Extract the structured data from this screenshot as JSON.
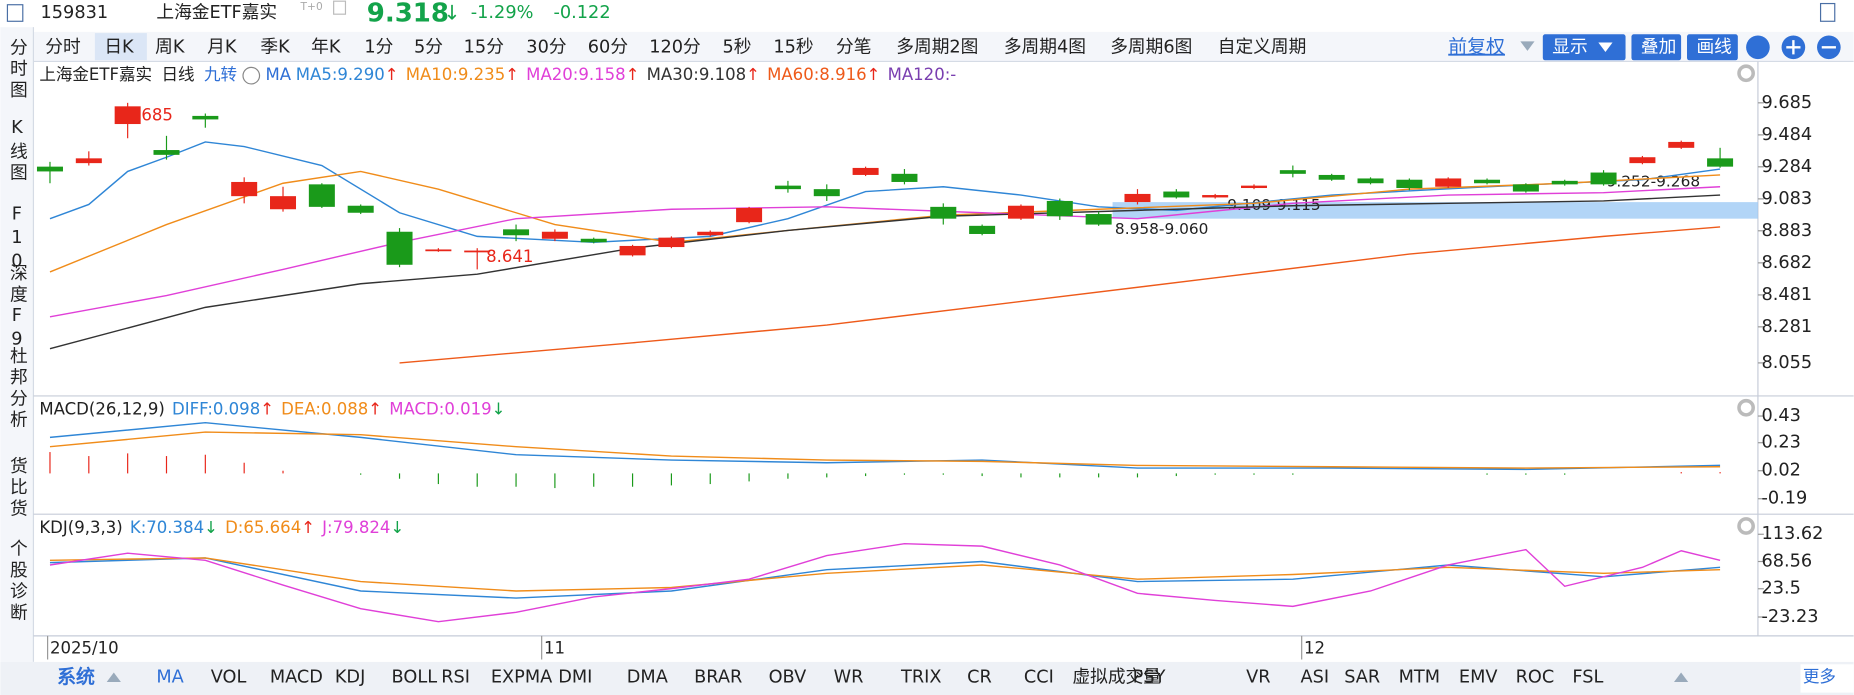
{
  "header": {
    "code": "159831",
    "name": "上海金ETF嘉实",
    "badge": "T+0",
    "price": "9.318",
    "direction": "↓",
    "change_pct": "-1.29%",
    "change": "-0.122"
  },
  "tabs": [
    "分时",
    "日K",
    "周K",
    "月K",
    "季K",
    "年K",
    "1分",
    "5分",
    "15分",
    "30分",
    "60分",
    "120分",
    "5秒",
    "15秒",
    "分笔",
    "多周期2图",
    "多周期4图",
    "多周期6图",
    "自定义周期"
  ],
  "selected_tab": "日K",
  "toolbar": {
    "adjust": "前复权",
    "buttons": [
      "显示",
      "叠加",
      "画线"
    ]
  },
  "sidebar": [
    "分时图",
    "K线图",
    "F10",
    "深度F9",
    "杜邦分析",
    "货比货",
    "个股诊断"
  ],
  "legend": {
    "name": "上海金ETF嘉实",
    "period": "日线",
    "jiuzhuan": "九转",
    "ma": "MA",
    "items": [
      {
        "label": "MA5:9.290",
        "trend": "↑",
        "color": "#2f86d6"
      },
      {
        "label": "MA10:9.235",
        "trend": "↑",
        "color": "#f08c1a"
      },
      {
        "label": "MA20:9.158",
        "trend": "↑",
        "color": "#e040d8"
      },
      {
        "label": "MA30:9.108",
        "trend": "↑",
        "color": "#333333"
      },
      {
        "label": "MA60:8.916",
        "trend": "↑",
        "color": "#ee5a1a"
      },
      {
        "label": "MA120:-",
        "trend": "",
        "color": "#7a3fb0"
      }
    ]
  },
  "dates": [
    "2025/10",
    "11",
    "12"
  ],
  "chart_data": [
    {
      "type": "candlestick",
      "up_color": "#e8261a",
      "down_color": "#1a9a1a",
      "ylim": [
        7.87,
        9.922
      ],
      "yticks": [
        9.685,
        9.484,
        9.284,
        9.083,
        8.883,
        8.682,
        8.481,
        8.281,
        8.055
      ],
      "ohlc": [
        [
          9.285,
          9.255,
          9.315,
          9.181
        ],
        [
          9.307,
          9.337,
          9.381,
          9.292
        ],
        [
          9.552,
          9.663,
          9.685,
          9.463
        ],
        [
          9.389,
          9.359,
          9.478,
          9.329
        ],
        [
          9.603,
          9.581,
          9.618,
          9.529
        ],
        [
          9.1,
          9.189,
          9.218,
          9.055
        ],
        [
          9.018,
          9.1,
          9.159,
          9.003
        ],
        [
          9.174,
          9.033,
          9.181,
          9.026
        ],
        [
          9.04,
          8.996,
          9.048,
          8.988
        ],
        [
          8.877,
          8.67,
          8.9,
          8.655
        ],
        [
          8.759,
          8.766,
          8.774,
          8.751
        ],
        [
          8.751,
          8.759,
          8.774,
          8.641
        ],
        [
          8.892,
          8.855,
          8.922,
          8.818
        ],
        [
          8.833,
          8.877,
          8.892,
          8.818
        ],
        [
          8.833,
          8.811,
          8.84,
          8.804
        ],
        [
          8.729,
          8.788,
          8.795,
          8.722
        ],
        [
          8.781,
          8.84,
          8.848,
          8.774
        ],
        [
          8.855,
          8.877,
          8.885,
          8.848
        ],
        [
          8.937,
          9.026,
          9.033,
          8.93
        ],
        [
          9.166,
          9.144,
          9.196,
          9.122
        ],
        [
          9.144,
          9.1,
          9.174,
          9.07
        ],
        [
          9.233,
          9.277,
          9.285,
          9.226
        ],
        [
          9.24,
          9.189,
          9.27,
          9.174
        ],
        [
          9.033,
          8.959,
          9.055,
          8.922
        ],
        [
          8.914,
          8.863,
          8.922,
          8.855
        ],
        [
          8.959,
          9.04,
          9.048,
          8.951
        ],
        [
          9.07,
          8.974,
          9.085,
          8.951
        ],
        [
          8.988,
          8.922,
          9.003,
          8.914
        ],
        [
          9.063,
          9.114,
          9.144,
          9.048
        ],
        [
          9.129,
          9.092,
          9.144,
          9.085
        ],
        [
          9.092,
          9.107,
          9.114,
          9.085
        ],
        [
          9.151,
          9.166,
          9.174,
          9.144
        ],
        [
          9.263,
          9.24,
          9.292,
          9.218
        ],
        [
          9.233,
          9.203,
          9.24,
          9.196
        ],
        [
          9.211,
          9.181,
          9.218,
          9.174
        ],
        [
          9.203,
          9.151,
          9.211,
          9.137
        ],
        [
          9.159,
          9.211,
          9.218,
          9.151
        ],
        [
          9.203,
          9.181,
          9.211,
          9.174
        ],
        [
          9.174,
          9.129,
          9.181,
          9.122
        ],
        [
          9.196,
          9.174,
          9.203,
          9.166
        ],
        [
          9.248,
          9.174,
          9.263,
          9.166
        ],
        [
          9.307,
          9.344,
          9.352,
          9.3
        ],
        [
          9.403,
          9.44,
          9.448,
          9.396
        ],
        [
          9.337,
          9.285,
          9.403,
          9.278
        ]
      ],
      "series": [
        {
          "name": "MA5",
          "color": "#2f86d6",
          "x": [
            0,
            1,
            2,
            3,
            4,
            5,
            7,
            9,
            11,
            14,
            17,
            19,
            21,
            23,
            25,
            27,
            29,
            33,
            37,
            41,
            43
          ],
          "values": [
            8.959,
            9.048,
            9.255,
            9.344,
            9.44,
            9.411,
            9.292,
            8.996,
            8.848,
            8.811,
            8.848,
            8.959,
            9.129,
            9.159,
            9.107,
            9.033,
            9.011,
            9.107,
            9.159,
            9.203,
            9.27
          ]
        },
        {
          "name": "MA10",
          "color": "#f08c1a",
          "x": [
            0,
            3,
            6,
            8,
            10,
            13,
            16,
            19,
            23,
            27,
            31,
            35,
            39,
            43
          ],
          "values": [
            8.625,
            8.922,
            9.181,
            9.255,
            9.144,
            8.922,
            8.811,
            8.885,
            8.981,
            9.018,
            9.055,
            9.144,
            9.181,
            9.233
          ]
        },
        {
          "name": "MA20",
          "color": "#e040d8",
          "x": [
            0,
            3,
            6,
            9,
            12,
            16,
            20,
            24,
            28,
            32,
            36,
            40,
            43
          ],
          "values": [
            8.344,
            8.477,
            8.641,
            8.811,
            8.959,
            9.018,
            9.033,
            8.996,
            8.959,
            9.055,
            9.107,
            9.122,
            9.159
          ]
        },
        {
          "name": "MA30",
          "color": "#333333",
          "x": [
            0,
            4,
            8,
            11,
            15,
            19,
            23,
            28,
            32,
            36,
            40,
            43
          ],
          "values": [
            8.144,
            8.403,
            8.551,
            8.611,
            8.774,
            8.885,
            8.974,
            9.011,
            9.04,
            9.055,
            9.07,
            9.107
          ]
        },
        {
          "name": "MA60",
          "color": "#ee5a1a",
          "x": [
            9,
            15,
            20,
            25,
            30,
            35,
            40,
            43
          ],
          "values": [
            8.055,
            8.181,
            8.292,
            8.44,
            8.588,
            8.737,
            8.848,
            8.907
          ]
        }
      ],
      "annotations": [
        "9.685",
        "8.641",
        "8.958-9.060",
        "9.109-9.115",
        "9.252-9.268"
      ]
    },
    {
      "type": "macd",
      "title": "MACD(26,12,9)",
      "ylim": [
        -0.279,
        0.554
      ],
      "yticks": [
        0.43,
        0.23,
        0.02,
        -0.19
      ],
      "legend": [
        {
          "label": "DIFF:0.098",
          "trend": "↑",
          "color": "#2f86d6"
        },
        {
          "label": "DEA:0.088",
          "trend": "↑",
          "color": "#f08c1a"
        },
        {
          "label": "MACD:0.019",
          "trend": "↓",
          "color": "#e040d8"
        }
      ],
      "up_color": "#e8261a",
      "down_color": "#1a9a1a",
      "histogram": [
        0.16,
        0.13,
        0.15,
        0.13,
        0.14,
        0.08,
        0.02,
        0.0,
        -0.01,
        -0.04,
        -0.08,
        -0.1,
        -0.1,
        -0.11,
        -0.1,
        -0.1,
        -0.09,
        -0.08,
        -0.06,
        -0.04,
        -0.03,
        -0.02,
        -0.01,
        -0.01,
        -0.02,
        -0.03,
        -0.03,
        -0.03,
        -0.03,
        -0.02,
        -0.01,
        -0.01,
        -0.01,
        0.0,
        0.0,
        0.0,
        0.0,
        -0.01,
        -0.01,
        -0.01,
        0.0,
        0.0,
        0.01,
        0.01
      ],
      "series": [
        {
          "name": "DIFF",
          "color": "#2f86d6",
          "x": [
            0,
            4,
            8,
            12,
            16,
            20,
            24,
            28,
            33,
            38,
            43
          ],
          "values": [
            0.27,
            0.38,
            0.27,
            0.14,
            0.1,
            0.08,
            0.1,
            0.04,
            0.04,
            0.03,
            0.06
          ]
        },
        {
          "name": "DEA",
          "color": "#f08c1a",
          "x": [
            0,
            4,
            8,
            12,
            16,
            20,
            24,
            28,
            33,
            38,
            43
          ],
          "values": [
            0.2,
            0.31,
            0.29,
            0.2,
            0.13,
            0.1,
            0.09,
            0.06,
            0.05,
            0.04,
            0.05
          ]
        }
      ]
    },
    {
      "type": "kdj",
      "title": "KDJ(9,3,3)",
      "ylim": [
        -48.6,
        141
      ],
      "yticks": [
        113.62,
        68.56,
        23.5,
        -23.23
      ],
      "legend": [
        {
          "label": "K:70.384",
          "trend": "↓",
          "color": "#2f86d6"
        },
        {
          "label": "D:65.664",
          "trend": "↑",
          "color": "#f08c1a"
        },
        {
          "label": "J:79.824",
          "trend": "↓",
          "color": "#e040d8"
        }
      ],
      "series": [
        {
          "name": "K",
          "color": "#2f86d6",
          "x": [
            0,
            4,
            8,
            12,
            16,
            20,
            24,
            28,
            32,
            36,
            40,
            43
          ],
          "values": [
            66.7,
            74.5,
            19.8,
            8.1,
            19.8,
            55,
            68.6,
            35.4,
            39.3,
            62.8,
            43.3,
            58.9
          ]
        },
        {
          "name": "D",
          "color": "#f08c1a",
          "x": [
            0,
            4,
            8,
            12,
            16,
            20,
            24,
            28,
            32,
            36,
            40,
            43
          ],
          "values": [
            70.6,
            74.5,
            35.4,
            19.8,
            25.6,
            49.1,
            62.8,
            39.3,
            47.1,
            58.9,
            49.1,
            55
          ]
        },
        {
          "name": "J",
          "color": "#e040d8",
          "x": [
            0,
            2,
            4,
            6,
            8,
            10,
            12,
            14,
            16,
            18,
            20,
            22,
            24,
            26,
            28,
            30,
            32,
            34,
            36,
            38,
            39,
            41,
            42,
            43
          ],
          "values": [
            62.8,
            82.3,
            70.6,
            29.6,
            -9.5,
            -31,
            -15.4,
            10,
            23.7,
            39.3,
            78.4,
            98,
            94,
            62.8,
            15.9,
            4.2,
            -5.6,
            19.8,
            62.8,
            88.2,
            27.6,
            58.9,
            86.3,
            70.6
          ]
        }
      ]
    }
  ],
  "bottom": {
    "system": "系统",
    "indicators": [
      "MA",
      "VOL",
      "MACD",
      "KDJ",
      "BOLL",
      "RSI",
      "EXPMA",
      "DMI",
      "DMA",
      "BRAR",
      "OBV",
      "WR",
      "TRIX",
      "CR",
      "CCI",
      "虚拟成交量",
      "PSY",
      "VR",
      "ASI",
      "SAR",
      "MTM",
      "EMV",
      "ROC",
      "FSL"
    ],
    "more": "更多"
  }
}
